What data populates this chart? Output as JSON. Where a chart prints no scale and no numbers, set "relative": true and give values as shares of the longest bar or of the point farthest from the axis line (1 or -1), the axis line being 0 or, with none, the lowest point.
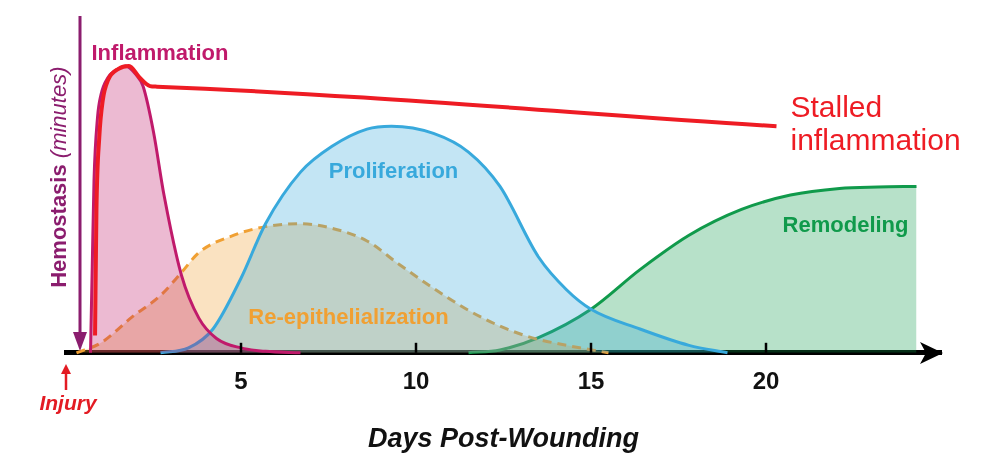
{
  "chart_data": {
    "type": "area",
    "xlabel": "Days Post-Wounding",
    "relative": true,
    "xlim": [
      0,
      25
    ],
    "xticks": [
      5,
      10,
      15,
      20
    ],
    "grid": false,
    "legend": false,
    "marker": "none",
    "series": [
      {
        "name": "Inflammation",
        "color": "#c01a6b",
        "x": [
          0.7,
          0.75,
          0.8,
          0.9,
          1.0,
          1.2,
          1.5,
          1.7,
          2.0,
          2.2,
          2.5,
          2.8,
          3.3,
          3.8,
          4.3,
          5.0,
          5.7,
          6.7
        ],
        "values": [
          0,
          0.3,
          0.6,
          0.82,
          0.9,
          0.96,
          0.99,
          1.0,
          0.97,
          0.93,
          0.77,
          0.55,
          0.27,
          0.12,
          0.05,
          0.017,
          0.005,
          0
        ]
      },
      {
        "name": "Stalled inflammation",
        "type": "line",
        "color": "#ee1c24",
        "x": [
          0.83,
          0.87,
          0.95,
          1.05,
          1.2,
          1.5,
          1.8,
          2.1,
          2.4,
          2.6,
          20.3
        ],
        "values": [
          0.06,
          0.5,
          0.75,
          0.88,
          0.95,
          0.99,
          1.0,
          0.96,
          0.93,
          0.928,
          0.79
        ]
      },
      {
        "name": "Proliferation",
        "color": "#38a9dc",
        "x": [
          2.7,
          3.5,
          4.2,
          5.0,
          5.7,
          6.7,
          7.6,
          8.6,
          9.3,
          10.5,
          11.5,
          12.4,
          13.5,
          14.3,
          15.0,
          16.4,
          17.8,
          18.9
        ],
        "values": [
          0,
          0.017,
          0.083,
          0.26,
          0.45,
          0.63,
          0.72,
          0.78,
          0.79,
          0.765,
          0.7,
          0.58,
          0.334,
          0.22,
          0.152,
          0.083,
          0.026,
          0
        ]
      },
      {
        "name": "Re-epithelialization",
        "color": "#f0a033",
        "line_style": "dashed",
        "x": [
          0.3,
          1.0,
          1.9,
          2.7,
          3.3,
          3.8,
          4.8,
          5.7,
          6.7,
          7.6,
          8.6,
          9.5,
          10.5,
          11.5,
          12.4,
          13.3,
          14.3,
          15.5
        ],
        "values": [
          0,
          0.035,
          0.126,
          0.2,
          0.28,
          0.35,
          0.41,
          0.44,
          0.45,
          0.434,
          0.39,
          0.31,
          0.225,
          0.148,
          0.093,
          0.053,
          0.026,
          0
        ]
      },
      {
        "name": "Remodeling",
        "color": "#109a4b",
        "x": [
          11.5,
          12.4,
          13.5,
          15.0,
          16.4,
          17.8,
          19.3,
          20.7,
          22.1,
          23.2,
          24.3
        ],
        "values": [
          0,
          0.01,
          0.053,
          0.152,
          0.29,
          0.41,
          0.5,
          0.55,
          0.573,
          0.578,
          0.58
        ]
      }
    ],
    "ref_lines": [
      {
        "axis": "x",
        "value": 0.4,
        "label": "Hemostasis (minutes)",
        "color": "#8b1d6e"
      }
    ],
    "annotations": [
      "Injury"
    ]
  }
}
